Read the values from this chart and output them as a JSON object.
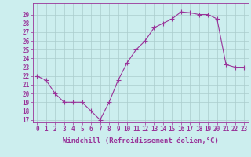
{
  "hours": [
    0,
    1,
    2,
    3,
    4,
    5,
    6,
    7,
    8,
    9,
    10,
    11,
    12,
    13,
    14,
    15,
    16,
    17,
    18,
    19,
    20,
    21,
    22,
    23
  ],
  "values": [
    22.0,
    21.5,
    20.0,
    19.0,
    19.0,
    19.0,
    18.0,
    17.0,
    19.0,
    21.5,
    23.5,
    25.0,
    26.0,
    27.5,
    28.0,
    28.5,
    29.3,
    29.2,
    29.0,
    29.0,
    28.5,
    23.3,
    23.0,
    23.0
  ],
  "line_color": "#993399",
  "marker": "+",
  "marker_size": 4.0,
  "line_width": 0.8,
  "bg_color": "#cceeee",
  "grid_color": "#aacccc",
  "xlabel": "Windchill (Refroidissement éolien,°C)",
  "xlabel_fontsize": 6.5,
  "tick_fontsize": 5.5,
  "ylim_min": 17,
  "ylim_max": 30,
  "yticks": [
    17,
    18,
    19,
    20,
    21,
    22,
    23,
    24,
    25,
    26,
    27,
    28,
    29
  ],
  "xticks": [
    0,
    1,
    2,
    3,
    4,
    5,
    6,
    7,
    8,
    9,
    10,
    11,
    12,
    13,
    14,
    15,
    16,
    17,
    18,
    19,
    20,
    21,
    22,
    23
  ]
}
